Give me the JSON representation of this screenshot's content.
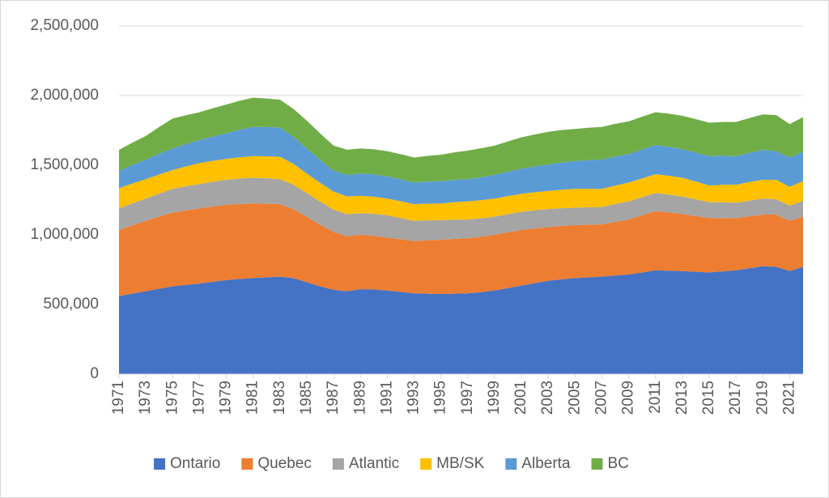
{
  "chart_data": {
    "type": "stacked-area",
    "x": [
      1971,
      1972,
      1973,
      1974,
      1975,
      1976,
      1977,
      1978,
      1979,
      1980,
      1981,
      1982,
      1983,
      1984,
      1985,
      1986,
      1987,
      1988,
      1989,
      1990,
      1991,
      1992,
      1993,
      1994,
      1995,
      1996,
      1997,
      1998,
      1999,
      2000,
      2001,
      2002,
      2003,
      2004,
      2005,
      2006,
      2007,
      2008,
      2009,
      2010,
      2011,
      2012,
      2013,
      2014,
      2015,
      2016,
      2017,
      2018,
      2019,
      2020,
      2021,
      2022
    ],
    "xlim": [
      1971,
      2022
    ],
    "xticks": [
      1971,
      1973,
      1975,
      1977,
      1979,
      1981,
      1983,
      1985,
      1987,
      1989,
      1991,
      1993,
      1995,
      1997,
      1999,
      2001,
      2003,
      2005,
      2007,
      2009,
      2011,
      2013,
      2015,
      2017,
      2019,
      2021
    ],
    "ylim": [
      0,
      2500000
    ],
    "yticks": [
      0,
      {
        "value": 500000,
        "label": "500,000"
      },
      {
        "value": 1000000,
        "label": "1,000,000"
      },
      {
        "value": 1500000,
        "label": "1,500,000"
      },
      {
        "value": 2000000,
        "label": "2,000,000"
      },
      {
        "value": 2500000,
        "label": "2,500,000"
      }
    ],
    "grid": true,
    "legend": "bottom",
    "series": [
      {
        "name": "Ontario",
        "color": "#4472c4",
        "values": [
          560000,
          578000,
          595000,
          613000,
          630000,
          640000,
          650000,
          663000,
          675000,
          683000,
          690000,
          695000,
          700000,
          690000,
          660000,
          630000,
          605000,
          595000,
          610000,
          608000,
          600000,
          590000,
          580000,
          578000,
          575000,
          578000,
          580000,
          588000,
          600000,
          618000,
          635000,
          653000,
          670000,
          680000,
          690000,
          695000,
          700000,
          708000,
          715000,
          730000,
          745000,
          743000,
          740000,
          735000,
          730000,
          738000,
          745000,
          760000,
          775000,
          770000,
          740000,
          770000
        ]
      },
      {
        "name": "Quebec",
        "color": "#ed7d31",
        "values": [
          475000,
          490000,
          505000,
          518000,
          530000,
          535000,
          540000,
          540000,
          540000,
          538000,
          535000,
          528000,
          520000,
          495000,
          470000,
          443000,
          415000,
          395000,
          390000,
          385000,
          380000,
          378000,
          375000,
          383000,
          390000,
          393000,
          395000,
          398000,
          400000,
          400000,
          400000,
          393000,
          385000,
          383000,
          380000,
          378000,
          375000,
          385000,
          395000,
          410000,
          425000,
          418000,
          410000,
          400000,
          390000,
          383000,
          375000,
          373000,
          370000,
          375000,
          360000,
          360000
        ]
      },
      {
        "name": "Atlantic",
        "color": "#a5a5a5",
        "values": [
          155000,
          158000,
          160000,
          165000,
          170000,
          173000,
          175000,
          178000,
          180000,
          183000,
          185000,
          183000,
          180000,
          175000,
          170000,
          165000,
          160000,
          158000,
          155000,
          158000,
          160000,
          153000,
          145000,
          143000,
          140000,
          138000,
          135000,
          133000,
          130000,
          130000,
          130000,
          130000,
          130000,
          128000,
          125000,
          125000,
          125000,
          128000,
          130000,
          130000,
          130000,
          128000,
          125000,
          120000,
          115000,
          113000,
          110000,
          113000,
          115000,
          110000,
          110000,
          115000
        ]
      },
      {
        "name": "MB/SK",
        "color": "#ffc000",
        "values": [
          145000,
          143000,
          140000,
          138000,
          135000,
          143000,
          150000,
          150000,
          150000,
          153000,
          155000,
          158000,
          160000,
          150000,
          140000,
          135000,
          130000,
          128000,
          125000,
          123000,
          120000,
          120000,
          120000,
          120000,
          120000,
          125000,
          130000,
          130000,
          130000,
          130000,
          130000,
          130000,
          130000,
          133000,
          135000,
          133000,
          130000,
          133000,
          135000,
          135000,
          135000,
          135000,
          135000,
          128000,
          120000,
          125000,
          130000,
          133000,
          135000,
          140000,
          135000,
          140000
        ]
      },
      {
        "name": "Alberta",
        "color": "#5b9bd5",
        "values": [
          125000,
          133000,
          140000,
          148000,
          155000,
          160000,
          165000,
          175000,
          185000,
          198000,
          210000,
          210000,
          210000,
          195000,
          180000,
          165000,
          150000,
          155000,
          160000,
          160000,
          160000,
          158000,
          155000,
          158000,
          160000,
          160000,
          160000,
          165000,
          170000,
          175000,
          180000,
          185000,
          190000,
          195000,
          200000,
          205000,
          210000,
          208000,
          205000,
          208000,
          210000,
          208000,
          205000,
          208000,
          210000,
          208000,
          205000,
          210000,
          215000,
          205000,
          210000,
          210000
        ]
      },
      {
        "name": "BC",
        "color": "#70ad47",
        "values": [
          150000,
          160000,
          170000,
          193000,
          215000,
          208000,
          200000,
          203000,
          205000,
          208000,
          210000,
          205000,
          200000,
          200000,
          200000,
          190000,
          180000,
          180000,
          180000,
          180000,
          180000,
          180000,
          180000,
          185000,
          190000,
          198000,
          205000,
          208000,
          210000,
          218000,
          225000,
          230000,
          235000,
          233000,
          230000,
          233000,
          235000,
          235000,
          235000,
          235000,
          235000,
          238000,
          240000,
          240000,
          240000,
          243000,
          245000,
          250000,
          255000,
          260000,
          240000,
          250000
        ]
      }
    ]
  }
}
